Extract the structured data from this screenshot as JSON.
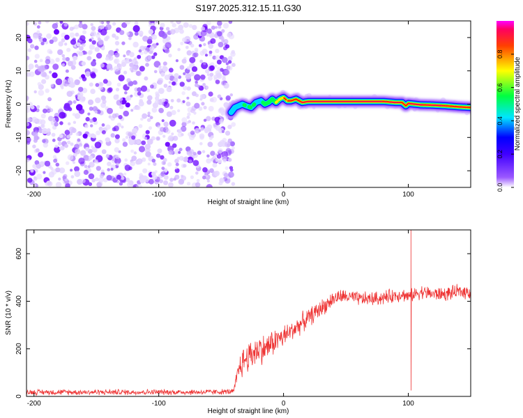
{
  "title": "S197.2025.312.15.11.G30",
  "chart_data": [
    {
      "type": "heatmap",
      "name": "spectrogram",
      "xlabel": "Height of straight line (km)",
      "ylabel": "Frequency (Hz)",
      "xlim": [
        -206,
        150
      ],
      "ylim": [
        -25,
        25
      ],
      "xticks": [
        -200,
        -100,
        0,
        100
      ],
      "yticks": [
        -20,
        -10,
        0,
        10,
        20
      ],
      "noise_region_x": [
        -206,
        -40
      ],
      "signal_onset_x": -40,
      "ridge": {
        "x": [
          -42,
          -39,
          -36,
          -33,
          -30,
          -26,
          -22,
          -18,
          -15,
          -12,
          -9,
          -6,
          -3,
          0,
          3,
          6,
          10,
          15,
          20,
          30,
          40,
          50,
          60,
          70,
          80,
          90,
          95,
          98,
          100,
          105,
          110,
          120,
          130,
          140,
          150
        ],
        "freq": [
          -2.5,
          -1.0,
          -0.5,
          0.0,
          -0.5,
          -1.0,
          0.5,
          1.0,
          0.0,
          0.5,
          1.5,
          0.5,
          1.5,
          2.0,
          1.0,
          1.0,
          1.5,
          0.5,
          0.8,
          0.8,
          0.8,
          0.8,
          0.8,
          0.8,
          0.8,
          0.5,
          0.5,
          -0.5,
          0.2,
          0.0,
          -0.2,
          -0.3,
          -0.5,
          -0.8,
          -1.0
        ],
        "amplitude": [
          0.5,
          0.55,
          0.5,
          0.6,
          0.55,
          0.6,
          0.6,
          0.55,
          0.65,
          0.7,
          0.7,
          0.75,
          0.8,
          0.85,
          0.85,
          0.9,
          0.9,
          0.95,
          0.95,
          0.98,
          0.98,
          0.98,
          0.98,
          0.97,
          0.95,
          0.95,
          0.9,
          0.9,
          0.95,
          0.95,
          0.95,
          0.95,
          0.93,
          0.9,
          0.88
        ]
      }
    },
    {
      "type": "colorbar",
      "name": "amplitude-colorbar",
      "label": "Normalized spectral amplitude",
      "range": [
        0,
        1
      ],
      "ticks": [
        "0.0",
        "0.2",
        "0.4",
        "0.6",
        "0.8"
      ],
      "colors": [
        "#ffffff",
        "#8000ff",
        "#0000ff",
        "#00ffff",
        "#00ff00",
        "#ffff00",
        "#ff0000",
        "#ff00ff"
      ]
    },
    {
      "type": "line",
      "name": "snr",
      "xlabel": "Height of straight line (km)",
      "ylabel": "SNR (10 * v/v)",
      "xlim": [
        -206,
        150
      ],
      "ylim": [
        0,
        700
      ],
      "xticks": [
        -200,
        -100,
        0,
        100
      ],
      "yticks": [
        0,
        200,
        400,
        600
      ],
      "color": "#ee3333",
      "x": [
        -206,
        -150,
        -100,
        -60,
        -45,
        -40,
        -35,
        -30,
        -25,
        -20,
        -15,
        -10,
        -5,
        0,
        5,
        10,
        15,
        20,
        25,
        30,
        35,
        40,
        45,
        50,
        60,
        70,
        80,
        90,
        95,
        100,
        105,
        110,
        120,
        130,
        140,
        150
      ],
      "y": [
        18,
        18,
        18,
        18,
        20,
        20,
        130,
        160,
        180,
        200,
        200,
        220,
        240,
        250,
        270,
        290,
        310,
        330,
        350,
        370,
        390,
        410,
        420,
        420,
        410,
        410,
        415,
        425,
        430,
        420,
        430,
        440,
        430,
        430,
        440,
        440
      ],
      "noise_amplitude": [
        14,
        14,
        14,
        14,
        14,
        14,
        70,
        80,
        80,
        80,
        70,
        70,
        60,
        60,
        50,
        50,
        50,
        45,
        45,
        45,
        40,
        40,
        35,
        35,
        35,
        35,
        35,
        35,
        35,
        30,
        35,
        35,
        35,
        35,
        35,
        35
      ],
      "spike": {
        "x": 102,
        "max": 700,
        "min": 25
      }
    }
  ]
}
